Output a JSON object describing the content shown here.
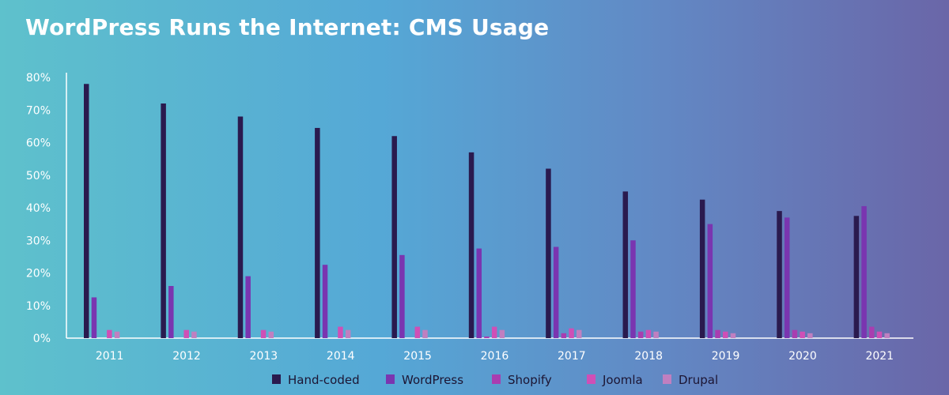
{
  "title": "WordPress Runs the Internet: CMS Usage",
  "chart_data": {
    "type": "bar",
    "title": "WordPress Runs the Internet: CMS Usage",
    "xlabel": "",
    "ylabel": "",
    "ylim": [
      0,
      80
    ],
    "yticks": [
      "0%",
      "10%",
      "20%",
      "30%",
      "40%",
      "50%",
      "60%",
      "70%",
      "80%"
    ],
    "ytick_values": [
      0,
      10,
      20,
      30,
      40,
      50,
      60,
      70,
      80
    ],
    "categories": [
      "2011",
      "2012",
      "2013",
      "2014",
      "2015",
      "2016",
      "2017",
      "2018",
      "2019",
      "2020",
      "2021"
    ],
    "series": [
      {
        "name": "Hand-coded",
        "color": "#2a1a4e",
        "values": [
          78,
          72,
          68,
          64.5,
          62,
          57,
          52,
          45,
          42.5,
          39,
          37.5
        ]
      },
      {
        "name": "WordPress",
        "color": "#7a35b0",
        "values": [
          12.5,
          16,
          19,
          22.5,
          25.5,
          27.5,
          28,
          30,
          35,
          37,
          40.5
        ]
      },
      {
        "name": "Shopify",
        "color": "#a93db0",
        "values": [
          0,
          0,
          0,
          0,
          0,
          0.5,
          1.5,
          2,
          2.5,
          2.5,
          3.5
        ]
      },
      {
        "name": "Joomla",
        "color": "#cf4fb6",
        "values": [
          2.5,
          2.5,
          2.5,
          3.5,
          3.5,
          3.5,
          3,
          2.5,
          2,
          2,
          2
        ]
      },
      {
        "name": "Drupal",
        "color": "#c07fc0",
        "values": [
          2,
          2,
          2,
          2.5,
          2.5,
          2.5,
          2.5,
          2,
          1.5,
          1.5,
          1.5
        ]
      }
    ],
    "grid": false,
    "legend_position": "bottom-center"
  }
}
